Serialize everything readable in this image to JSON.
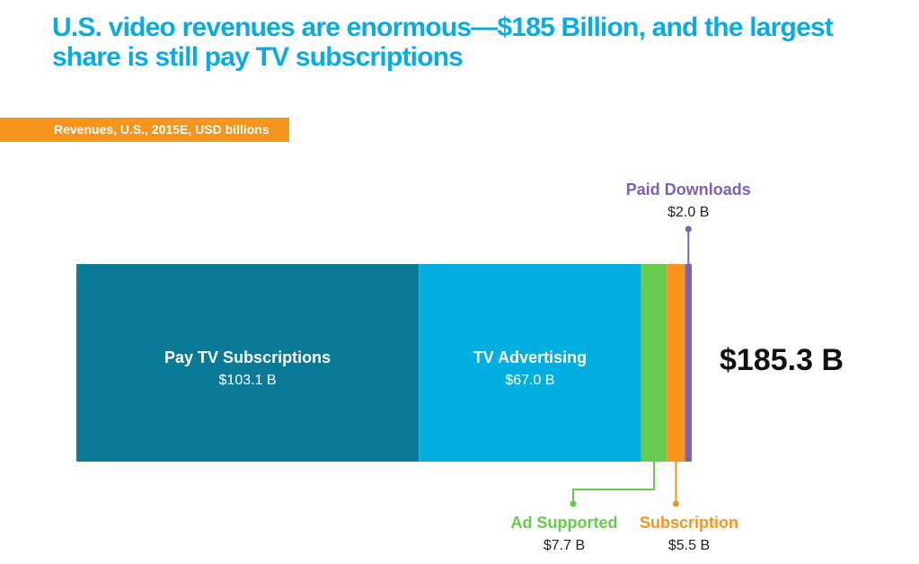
{
  "title": "U.S. video revenues are enormous—$185 Billion, and the largest share is still pay TV subscriptions",
  "subtitle": "Revenues, U.S., 2015E, USD billions",
  "chart_data": {
    "type": "stacked_bar",
    "orientation": "horizontal",
    "total": 185.3,
    "total_label": "$185.3 B",
    "segments": [
      {
        "name": "Pay TV Subscriptions",
        "value": 103.1,
        "value_label": "$103.1 B",
        "color": "#0a7a96",
        "label_color": "#ffffff",
        "label_placement": "inside"
      },
      {
        "name": "TV Advertising",
        "value": 67.0,
        "value_label": "$67.0 B",
        "color": "#03aee0",
        "label_color": "#ffffff",
        "label_placement": "inside"
      },
      {
        "name": "Ad Supported",
        "value": 7.7,
        "value_label": "$7.7 B",
        "color": "#66cc4d",
        "label_color": "#66cc4d",
        "label_placement": "below"
      },
      {
        "name": "Subscription",
        "value": 5.5,
        "value_label": "$5.5 B",
        "color": "#f7941d",
        "label_color": "#f7941d",
        "label_placement": "below"
      },
      {
        "name": "Paid Downloads",
        "value": 2.0,
        "value_label": "$2.0 B",
        "color": "#7b61b8",
        "label_color": "#7b61b8",
        "label_placement": "above"
      }
    ]
  }
}
